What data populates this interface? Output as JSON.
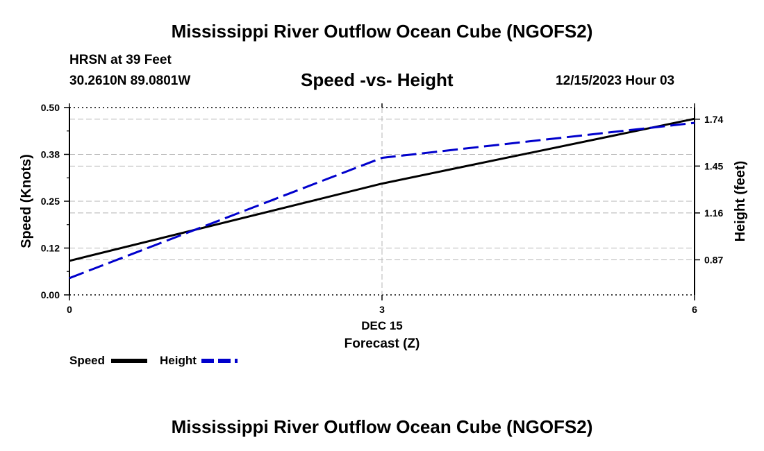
{
  "header": {
    "title": "Mississippi River Outflow Ocean Cube (NGOFS2)",
    "station_name": "HRSN at 39 Feet",
    "coordinates": "30.2610N  89.0801W",
    "chart_title": "Speed -vs- Height",
    "date_time": "12/15/2023 Hour 03"
  },
  "footer": {
    "title": "Mississippi River Outflow Ocean Cube (NGOFS2)"
  },
  "chart_data": {
    "type": "line",
    "x": [
      0,
      3,
      6
    ],
    "xlabel": "Forecast (Z)",
    "x_date_label": "DEC 15",
    "x_ticks": [
      "0",
      "3",
      "6"
    ],
    "xlim": [
      0,
      6
    ],
    "y_left": {
      "label": "Speed (Knots)",
      "ticks": [
        "0.00",
        "0.12",
        "0.25",
        "0.38",
        "0.50"
      ],
      "tick_values": [
        0,
        0.125,
        0.25,
        0.375,
        0.5
      ],
      "lim": [
        0,
        0.5
      ]
    },
    "y_right": {
      "label": "Height (feet)",
      "ticks": [
        "0.87",
        "1.16",
        "1.45",
        "1.74"
      ],
      "tick_values": [
        0.87,
        1.16,
        1.45,
        1.74
      ],
      "lim": [
        0.653,
        1.812
      ]
    },
    "series": [
      {
        "name": "Speed",
        "axis": "left",
        "values": [
          0.091,
          0.297,
          0.47
        ],
        "color": "#000000",
        "style": "solid"
      },
      {
        "name": "Height",
        "axis": "right",
        "values": [
          0.757,
          1.501,
          1.717
        ],
        "color": "#0000cc",
        "style": "dashed"
      }
    ],
    "legend": [
      {
        "label": "Speed",
        "color": "#000000",
        "style": "solid"
      },
      {
        "label": "Height",
        "color": "#0000cc",
        "style": "dashed"
      }
    ]
  }
}
